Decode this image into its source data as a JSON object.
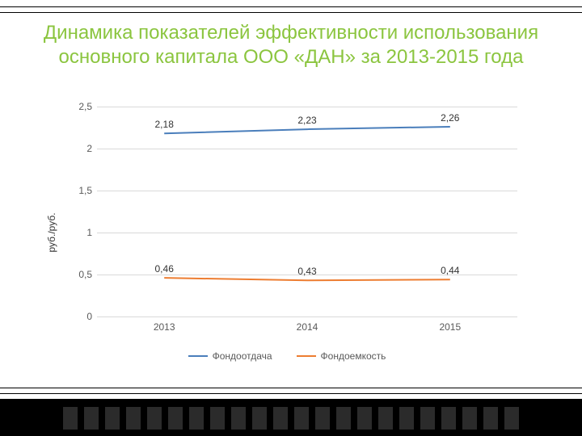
{
  "title": "Динамика показателей эффективности использования основного капитала ООО «ДАН» за 2013-2015 года",
  "ylabel": "руб./руб.",
  "chart": {
    "type": "line",
    "categories": [
      "2013",
      "2014",
      "2015"
    ],
    "x_positions_pct": [
      16,
      50,
      84
    ],
    "y": {
      "min": 0,
      "max": 2.5,
      "ticks": [
        "0",
        "0,5",
        "1",
        "1,5",
        "2",
        "2,5"
      ],
      "tick_vals": [
        0,
        0.5,
        1,
        1.5,
        2,
        2.5
      ]
    },
    "series": [
      {
        "name": "Фондоотдача",
        "color": "#4a7ebb",
        "values": [
          2.18,
          2.23,
          2.26
        ],
        "labels": [
          "2,18",
          "2,23",
          "2,26"
        ]
      },
      {
        "name": "Фондоемкость",
        "color": "#ed7d31",
        "values": [
          0.46,
          0.43,
          0.44
        ],
        "labels": [
          "0,46",
          "0,43",
          "0,44"
        ]
      }
    ],
    "background_color": "#ffffff",
    "grid_color": "#d9d9d9",
    "axis_label_color": "#595959",
    "line_width": 2,
    "title_color": "#8BC53F",
    "title_fontsize": 24,
    "tick_fontsize": 12
  }
}
